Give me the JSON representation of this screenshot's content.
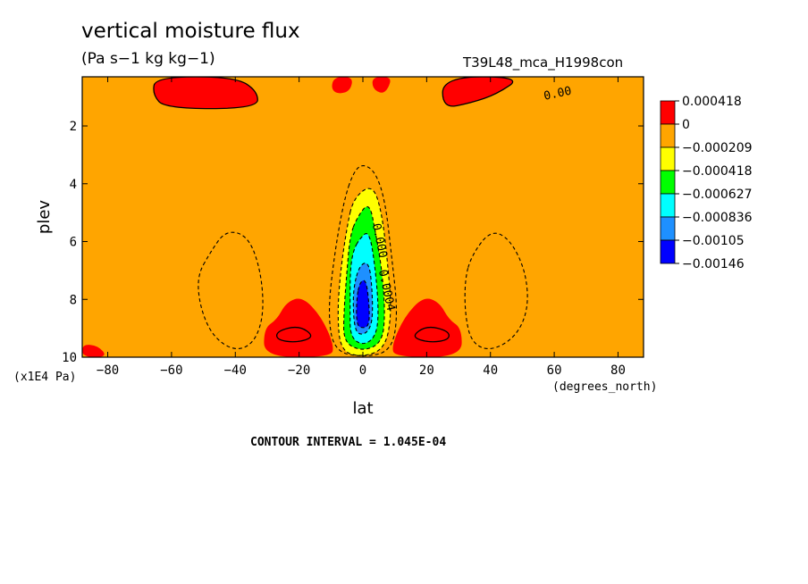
{
  "title": "vertical moisture flux",
  "subtitle": "(Pa s−1 kg kg−1)",
  "run_label": "T39L48_mca_H1998con",
  "vertical_units": "(x1E4 Pa)",
  "contour_interval": "CONTOUR INTERVAL = 1.045E-04",
  "chart_data": {
    "type": "heatmap",
    "xlabel": "lat",
    "xunits": "(degrees_north)",
    "ylabel": "plev",
    "xlim": [
      -88,
      88
    ],
    "ylim": [
      0.3,
      10
    ],
    "y_inverted": true,
    "x_ticks": [
      -80,
      -60,
      -40,
      -20,
      0,
      20,
      40,
      60,
      80
    ],
    "x_tick_labels": [
      "−80",
      "−60",
      "−40",
      "−20",
      "0",
      "20",
      "40",
      "60",
      "80"
    ],
    "y_ticks": [
      2,
      4,
      6,
      8,
      10
    ],
    "y_tick_labels": [
      "2",
      "4",
      "6",
      "8",
      "10"
    ],
    "contour_labels": [
      {
        "text": "0.00",
        "x": 57,
        "y": 1.1
      },
      {
        "text": "0.000",
        "x": 3,
        "y": 5.4
      },
      {
        "text": "0.0004",
        "x": 5,
        "y": 7.0
      }
    ],
    "colorbar": {
      "colors": [
        "#ff0000",
        "#ffa500",
        "#ffff00",
        "#00ff00",
        "#00ffff",
        "#1e90ff",
        "#0000ff"
      ],
      "labels": [
        "0.000418",
        "0",
        "−0.000209",
        "−0.000418",
        "−0.000627",
        "−0.000836",
        "−0.00105",
        "−0.00146"
      ]
    },
    "background_level": "#ffa500",
    "regions": [
      {
        "fill": "#ff0000",
        "points": [
          [
            -65,
            0.3
          ],
          [
            -40,
            0.3
          ],
          [
            -33,
            0.8
          ],
          [
            -33,
            1.4
          ],
          [
            -62,
            1.4
          ],
          [
            -66,
            0.9
          ]
        ]
      },
      {
        "fill": "#ff0000",
        "points": [
          [
            -9,
            0.3
          ],
          [
            -3,
            0.3
          ],
          [
            -4,
            0.8
          ],
          [
            -8,
            0.9
          ],
          [
            -10,
            0.7
          ]
        ]
      },
      {
        "fill": "#ff0000",
        "points": [
          [
            3,
            0.3
          ],
          [
            9,
            0.3
          ],
          [
            8,
            0.7
          ],
          [
            6,
            0.9
          ],
          [
            3,
            0.7
          ]
        ]
      },
      {
        "fill": "#ff0000",
        "points": [
          [
            25,
            0.3
          ],
          [
            50,
            0.3
          ],
          [
            42,
            0.9
          ],
          [
            34,
            1.2
          ],
          [
            25,
            1.4
          ]
        ]
      },
      {
        "fill": "#ff0000",
        "points": [
          [
            -31,
            10
          ],
          [
            -31,
            9.0
          ],
          [
            -27,
            8.7
          ],
          [
            -24,
            8.1
          ],
          [
            -19,
            7.9
          ],
          [
            -13,
            8.6
          ],
          [
            -9,
            9.6
          ],
          [
            -10,
            10
          ]
        ]
      },
      {
        "fill": "#ff0000",
        "points": [
          [
            10,
            10
          ],
          [
            9,
            9.6
          ],
          [
            13,
            8.6
          ],
          [
            19,
            7.9
          ],
          [
            24,
            8.1
          ],
          [
            27,
            8.7
          ],
          [
            31,
            9.0
          ],
          [
            31,
            10
          ]
        ]
      },
      {
        "fill": "#ff0000",
        "points": [
          [
            -88,
            9.55
          ],
          [
            -83,
            9.6
          ],
          [
            -80,
            10
          ],
          [
            -88,
            10
          ]
        ]
      },
      {
        "fill": "#ffff00",
        "points": [
          [
            -3,
            4.5
          ],
          [
            3,
            4.0
          ],
          [
            6,
            5.0
          ],
          [
            8,
            7.0
          ],
          [
            9,
            8.5
          ],
          [
            7,
            9.7
          ],
          [
            0,
            10
          ],
          [
            -7,
            9.8
          ],
          [
            -8,
            8.5
          ],
          [
            -7,
            7.0
          ],
          [
            -5,
            5.5
          ]
        ]
      },
      {
        "fill": "#00ff00",
        "points": [
          [
            -2,
            5.2
          ],
          [
            2,
            4.6
          ],
          [
            4,
            5.7
          ],
          [
            6,
            7.0
          ],
          [
            7,
            8.5
          ],
          [
            6,
            9.5
          ],
          [
            0,
            9.8
          ],
          [
            -6,
            9.5
          ],
          [
            -6,
            8.5
          ],
          [
            -5,
            7.0
          ],
          [
            -4,
            5.8
          ]
        ]
      },
      {
        "fill": "#00ffff",
        "points": [
          [
            -1,
            5.9
          ],
          [
            2,
            5.6
          ],
          [
            4,
            7.0
          ],
          [
            5,
            8.5
          ],
          [
            4,
            9.3
          ],
          [
            0,
            9.6
          ],
          [
            -4,
            9.3
          ],
          [
            -4,
            8.3
          ],
          [
            -4,
            7.0
          ],
          [
            -3,
            6.3
          ]
        ]
      },
      {
        "fill": "#1e90ff",
        "points": [
          [
            -1,
            6.8
          ],
          [
            2,
            6.7
          ],
          [
            3,
            7.8
          ],
          [
            3,
            8.8
          ],
          [
            1,
            9.2
          ],
          [
            -2,
            9.2
          ],
          [
            -3,
            8.6
          ],
          [
            -3,
            7.6
          ]
        ]
      },
      {
        "fill": "#0000ff",
        "points": [
          [
            -1,
            7.4
          ],
          [
            1,
            7.3
          ],
          [
            2,
            8.2
          ],
          [
            2,
            8.9
          ],
          [
            0,
            9.0
          ],
          [
            -2,
            8.9
          ],
          [
            -2,
            8.0
          ]
        ]
      }
    ],
    "contour_lines": [
      {
        "style": "solid",
        "closed": true,
        "points": [
          [
            -65,
            0.3
          ],
          [
            -40,
            0.3
          ],
          [
            -33,
            0.8
          ],
          [
            -33,
            1.4
          ],
          [
            -62,
            1.4
          ],
          [
            -66,
            0.9
          ]
        ]
      },
      {
        "style": "solid",
        "closed": true,
        "points": [
          [
            25,
            0.3
          ],
          [
            50,
            0.3
          ],
          [
            42,
            0.9
          ],
          [
            34,
            1.2
          ],
          [
            25,
            1.4
          ]
        ]
      },
      {
        "style": "solid",
        "closed": true,
        "points": [
          [
            -27,
            9.1
          ],
          [
            -20,
            8.9
          ],
          [
            -15,
            9.3
          ],
          [
            -21,
            9.5
          ],
          [
            -27,
            9.4
          ]
        ]
      },
      {
        "style": "solid",
        "closed": true,
        "points": [
          [
            15,
            9.3
          ],
          [
            20,
            8.9
          ],
          [
            27,
            9.1
          ],
          [
            27,
            9.4
          ],
          [
            21,
            9.5
          ]
        ]
      },
      {
        "style": "dashed",
        "closed": true,
        "points": [
          [
            -48,
            6.4
          ],
          [
            -43,
            5.6
          ],
          [
            -36,
            5.8
          ],
          [
            -32,
            7.0
          ],
          [
            -31,
            8.5
          ],
          [
            -34,
            9.5
          ],
          [
            -40,
            9.8
          ],
          [
            -47,
            9.3
          ],
          [
            -51,
            8.3
          ],
          [
            -52,
            7.2
          ]
        ]
      },
      {
        "style": "dashed",
        "closed": true,
        "points": [
          [
            34,
            6.5
          ],
          [
            40,
            5.6
          ],
          [
            46,
            5.9
          ],
          [
            51,
            7.0
          ],
          [
            52,
            8.3
          ],
          [
            48,
            9.3
          ],
          [
            40,
            9.8
          ],
          [
            34,
            9.5
          ],
          [
            32,
            8.5
          ],
          [
            32,
            7.3
          ]
        ]
      },
      {
        "style": "dashed",
        "closed": true,
        "points": [
          [
            -3,
            3.6
          ],
          [
            0,
            3.3
          ],
          [
            4,
            3.6
          ],
          [
            7,
            4.6
          ],
          [
            9,
            6.5
          ],
          [
            11,
            8.5
          ],
          [
            9,
            9.8
          ],
          [
            0,
            10
          ],
          [
            -9,
            9.8
          ],
          [
            -11,
            8.5
          ],
          [
            -9,
            6.5
          ],
          [
            -6,
            4.6
          ]
        ]
      },
      {
        "style": "dashed",
        "closed": true,
        "points": [
          [
            -3,
            4.5
          ],
          [
            3,
            4.0
          ],
          [
            6,
            5.0
          ],
          [
            8,
            7.0
          ],
          [
            9,
            8.5
          ],
          [
            7,
            9.7
          ],
          [
            0,
            10
          ],
          [
            -7,
            9.8
          ],
          [
            -8,
            8.5
          ],
          [
            -7,
            7.0
          ],
          [
            -5,
            5.5
          ]
        ]
      },
      {
        "style": "dashed",
        "closed": true,
        "points": [
          [
            -2,
            5.2
          ],
          [
            2,
            4.6
          ],
          [
            4,
            5.7
          ],
          [
            6,
            7.0
          ],
          [
            7,
            8.5
          ],
          [
            6,
            9.5
          ],
          [
            0,
            9.8
          ],
          [
            -6,
            9.5
          ],
          [
            -6,
            8.5
          ],
          [
            -5,
            7.0
          ],
          [
            -4,
            5.8
          ]
        ]
      },
      {
        "style": "dashed",
        "closed": true,
        "points": [
          [
            -1,
            5.9
          ],
          [
            2,
            5.6
          ],
          [
            4,
            7.0
          ],
          [
            5,
            8.5
          ],
          [
            4,
            9.3
          ],
          [
            0,
            9.6
          ],
          [
            -4,
            9.3
          ],
          [
            -4,
            8.3
          ],
          [
            -4,
            7.0
          ],
          [
            -3,
            6.3
          ]
        ]
      },
      {
        "style": "dashed",
        "closed": true,
        "points": [
          [
            -1,
            6.8
          ],
          [
            2,
            6.7
          ],
          [
            3,
            7.8
          ],
          [
            3,
            8.8
          ],
          [
            1,
            9.2
          ],
          [
            -2,
            9.2
          ],
          [
            -3,
            8.6
          ],
          [
            -3,
            7.6
          ]
        ]
      },
      {
        "style": "dashed",
        "closed": true,
        "points": [
          [
            -1,
            7.4
          ],
          [
            1,
            7.3
          ],
          [
            2,
            8.2
          ],
          [
            2,
            8.9
          ],
          [
            0,
            9.0
          ],
          [
            -2,
            8.9
          ],
          [
            -2,
            8.0
          ]
        ]
      }
    ]
  }
}
